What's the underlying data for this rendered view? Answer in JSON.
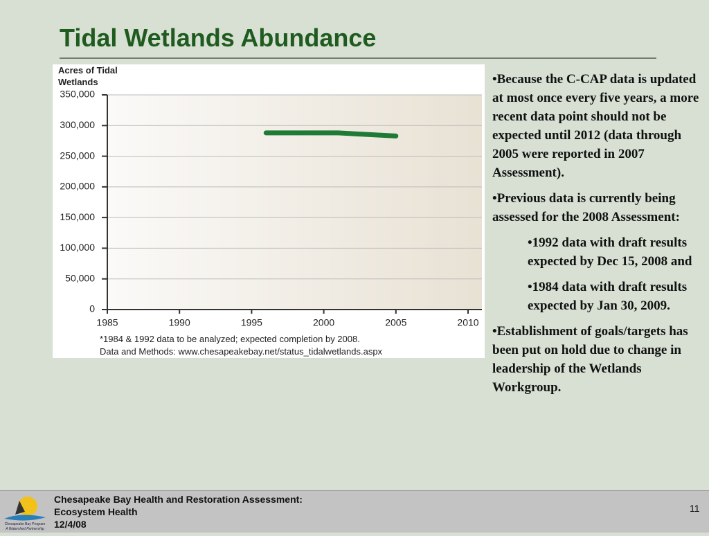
{
  "slide": {
    "title": "Tidal Wetlands Abundance",
    "body": [
      {
        "text": "Because the C-CAP data is updated at most once every five years, a more recent data point should not be expected until 2012 (data through 2005 were reported in 2007 Assessment).",
        "sub": []
      },
      {
        "text": "Previous data is currently being assessed for the 2008 Assessment:",
        "sub": [
          "1992 data with draft results expected by Dec 15, 2008 and",
          "1984 data with draft results expected by Jan 30, 2009."
        ]
      },
      {
        "text": "Establishment of goals/targets has been put on hold due to change in leadership of the Wetlands Workgroup.",
        "sub": []
      }
    ],
    "footer": [
      "Chesapeake Bay Health and Restoration Assessment:",
      "Ecosystem Health",
      "12/4/08"
    ],
    "page_number": "11",
    "logo": [
      "Chesapeake Bay Program",
      "A Watershed Partnership"
    ]
  },
  "chart_data": {
    "type": "line",
    "ylabel": "Acres of Tidal Wetlands",
    "x": [
      1996,
      2001,
      2005
    ],
    "series": [
      {
        "name": "Tidal wetlands",
        "color": "#1e7a35",
        "values": [
          288000,
          288000,
          283000
        ]
      }
    ],
    "xlim": [
      1985,
      2010
    ],
    "xticks": [
      1985,
      1990,
      1995,
      2000,
      2005,
      2010
    ],
    "ylim": [
      0,
      350000
    ],
    "yticks": [
      0,
      {
        "value": 50000,
        "label": "50,000"
      },
      {
        "value": 100000,
        "label": "100,000"
      },
      {
        "value": 150000,
        "label": "150,000"
      },
      {
        "value": 200000,
        "label": "200,000"
      },
      {
        "value": 250000,
        "label": "250,000"
      },
      {
        "value": 300000,
        "label": "300,000"
      },
      {
        "value": 350000,
        "label": "350,000"
      }
    ],
    "grid": true,
    "notes": [
      "*1984 & 1992 data to be analyzed; expected completion by 2008.",
      "Data and Methods: www.chesapeakebay.net/status_tidalwetlands.aspx"
    ]
  }
}
